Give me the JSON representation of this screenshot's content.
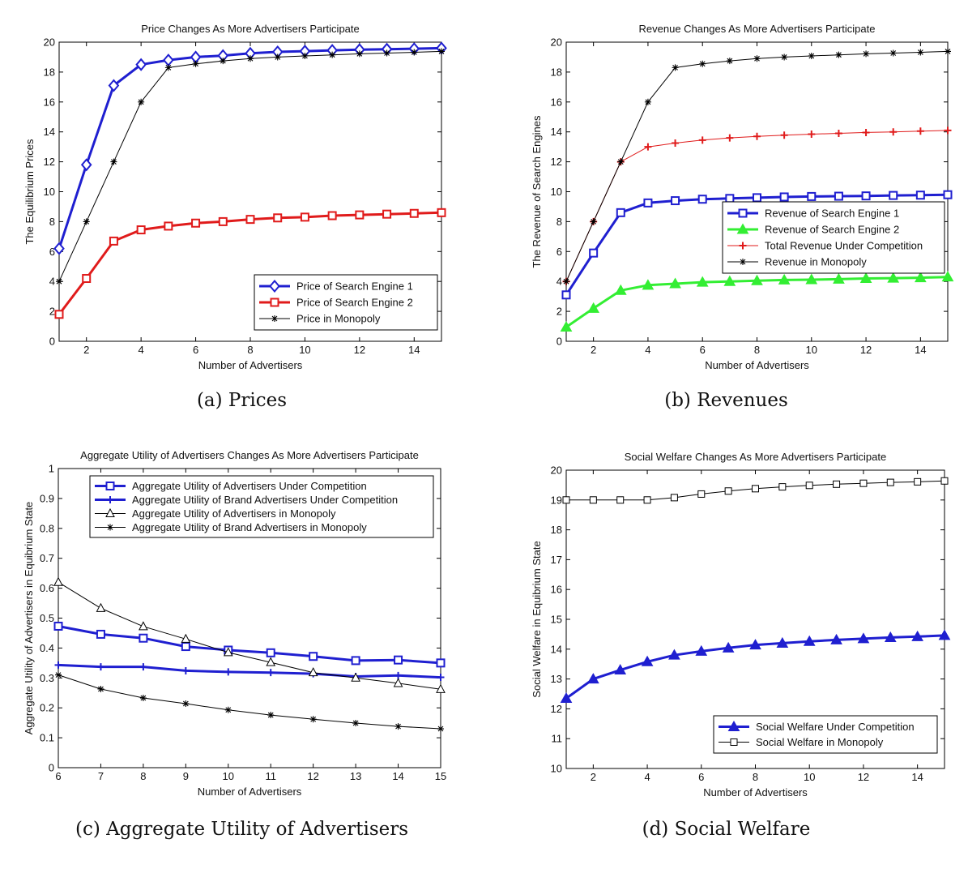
{
  "chart_data": [
    {
      "type": "line",
      "title": "Price Changes As More Advertisers Participate",
      "xlabel": "Number of Advertisers",
      "ylabel": "The Equilibrium Prices",
      "xlim": [
        1,
        15
      ],
      "ylim": [
        0,
        20
      ],
      "xticks": [
        2,
        4,
        6,
        8,
        10,
        12,
        14
      ],
      "yticks": [
        0,
        2,
        4,
        6,
        8,
        10,
        12,
        14,
        16,
        18,
        20
      ],
      "caption": "(a) Prices",
      "legend_position": "lower-right",
      "x": [
        1,
        2,
        3,
        4,
        5,
        6,
        7,
        8,
        9,
        10,
        11,
        12,
        13,
        14,
        15
      ],
      "series": [
        {
          "name": "Price of Search Engine 1",
          "color": "#1f1fd0",
          "marker": "diamond",
          "width": 3,
          "values": [
            6.2,
            11.8,
            17.1,
            18.5,
            18.8,
            19.0,
            19.1,
            19.25,
            19.35,
            19.4,
            19.45,
            19.5,
            19.53,
            19.56,
            19.6
          ]
        },
        {
          "name": "Price of Search Engine 2",
          "color": "#e01b1b",
          "marker": "square",
          "width": 3,
          "values": [
            1.8,
            4.2,
            6.7,
            7.45,
            7.7,
            7.9,
            8.0,
            8.15,
            8.25,
            8.3,
            8.4,
            8.45,
            8.5,
            8.55,
            8.6
          ]
        },
        {
          "name": "Price in Monopoly",
          "color": "#000000",
          "marker": "star",
          "width": 1,
          "values": [
            4.0,
            8.0,
            12.0,
            16.0,
            18.3,
            18.55,
            18.75,
            18.9,
            19.0,
            19.08,
            19.15,
            19.22,
            19.27,
            19.32,
            19.38
          ]
        }
      ]
    },
    {
      "type": "line",
      "title": "Revenue Changes As More Advertisers Participate",
      "xlabel": "Number of Advertisers",
      "ylabel": "The Revenue of Search Engines",
      "xlim": [
        1,
        15
      ],
      "ylim": [
        0,
        20
      ],
      "xticks": [
        2,
        4,
        6,
        8,
        10,
        12,
        14
      ],
      "yticks": [
        0,
        2,
        4,
        6,
        8,
        10,
        12,
        14,
        16,
        18,
        20
      ],
      "caption": "(b) Revenues",
      "legend_position": "right",
      "x": [
        1,
        2,
        3,
        4,
        5,
        6,
        7,
        8,
        9,
        10,
        11,
        12,
        13,
        14,
        15
      ],
      "series": [
        {
          "name": "Revenue of Search Engine 1",
          "color": "#1f1fd0",
          "marker": "square",
          "width": 3,
          "values": [
            3.1,
            5.9,
            8.6,
            9.25,
            9.4,
            9.5,
            9.55,
            9.6,
            9.65,
            9.68,
            9.7,
            9.72,
            9.75,
            9.77,
            9.8
          ]
        },
        {
          "name": "Revenue of Search Engine 2",
          "color": "#33ee33",
          "marker": "triangle",
          "width": 3,
          "values": [
            0.95,
            2.2,
            3.4,
            3.75,
            3.85,
            3.95,
            4.0,
            4.05,
            4.1,
            4.12,
            4.15,
            4.2,
            4.22,
            4.25,
            4.3
          ]
        },
        {
          "name": "Total Revenue Under Competition",
          "color": "#e01b1b",
          "marker": "plus",
          "width": 1,
          "values": [
            4.0,
            8.0,
            12.0,
            13.0,
            13.25,
            13.45,
            13.6,
            13.7,
            13.78,
            13.85,
            13.9,
            13.96,
            14.0,
            14.05,
            14.1
          ]
        },
        {
          "name": "Revenue in Monopoly",
          "color": "#000000",
          "marker": "star",
          "width": 1,
          "values": [
            4.0,
            8.0,
            12.0,
            16.0,
            18.3,
            18.55,
            18.75,
            18.9,
            19.0,
            19.08,
            19.15,
            19.22,
            19.27,
            19.32,
            19.38
          ]
        }
      ]
    },
    {
      "type": "line",
      "title": "Aggregate Utility of Advertisers Changes As More Advertisers Participate",
      "xlabel": "Number of Advertisers",
      "ylabel": "Aggregate Utility of Advertisers in Equibrium State",
      "xlim": [
        6,
        15
      ],
      "ylim": [
        0,
        1
      ],
      "xticks": [
        6,
        7,
        8,
        9,
        10,
        11,
        12,
        13,
        14,
        15
      ],
      "yticks": [
        0,
        0.1,
        0.2,
        0.3,
        0.4,
        0.5,
        0.6,
        0.7,
        0.8,
        0.9,
        1
      ],
      "caption": "(c) Aggregate Utility of Advertisers",
      "legend_position": "top",
      "x": [
        6,
        7,
        8,
        9,
        10,
        11,
        12,
        13,
        14,
        15
      ],
      "series": [
        {
          "name": "Aggregate Utility of Advertisers Under Competition",
          "color": "#1f1fd0",
          "marker": "square",
          "width": 3,
          "values": [
            0.473,
            0.446,
            0.433,
            0.405,
            0.393,
            0.384,
            0.372,
            0.358,
            0.36,
            0.35
          ]
        },
        {
          "name": "Aggregate Utility of Brand Advertisers Under Competition",
          "color": "#1f1fd0",
          "marker": "plus",
          "width": 3,
          "values": [
            0.343,
            0.337,
            0.337,
            0.324,
            0.32,
            0.318,
            0.314,
            0.305,
            0.308,
            0.302
          ]
        },
        {
          "name": "Aggregate Utility of Advertisers in Monopoly",
          "color": "#000000",
          "marker": "triangle-open",
          "width": 1,
          "values": [
            0.62,
            0.533,
            0.472,
            0.43,
            0.385,
            0.352,
            0.318,
            0.3,
            0.282,
            0.262
          ]
        },
        {
          "name": "Aggregate Utility of Brand Advertisers in Monopoly",
          "color": "#000000",
          "marker": "star",
          "width": 1,
          "values": [
            0.31,
            0.263,
            0.233,
            0.214,
            0.193,
            0.176,
            0.162,
            0.149,
            0.138,
            0.13
          ]
        }
      ]
    },
    {
      "type": "line",
      "title": "Social Welfare Changes As More Advertisers Participate",
      "xlabel": "Number of Advertisers",
      "ylabel": "Social Welfare in Equibrium State",
      "xlim": [
        1,
        15
      ],
      "ylim": [
        10,
        20
      ],
      "xticks": [
        2,
        4,
        6,
        8,
        10,
        12,
        14
      ],
      "yticks": [
        10,
        11,
        12,
        13,
        14,
        15,
        16,
        17,
        18,
        19,
        20
      ],
      "caption": "(d) Social Welfare",
      "legend_position": "lower-right",
      "x": [
        1,
        2,
        3,
        4,
        5,
        6,
        7,
        8,
        9,
        10,
        11,
        12,
        13,
        14,
        15
      ],
      "series": [
        {
          "name": "Social Welfare Under Competition",
          "color": "#1f1fd0",
          "marker": "triangle",
          "width": 3,
          "values": [
            12.35,
            13.0,
            13.3,
            13.58,
            13.8,
            13.93,
            14.04,
            14.14,
            14.2,
            14.26,
            14.31,
            14.35,
            14.39,
            14.42,
            14.46
          ]
        },
        {
          "name": "Social Welfare in Monopoly",
          "color": "#000000",
          "marker": "square-open",
          "width": 1,
          "values": [
            19.0,
            19.0,
            19.0,
            19.0,
            19.08,
            19.2,
            19.3,
            19.38,
            19.44,
            19.49,
            19.53,
            19.56,
            19.59,
            19.61,
            19.64
          ]
        }
      ]
    }
  ]
}
